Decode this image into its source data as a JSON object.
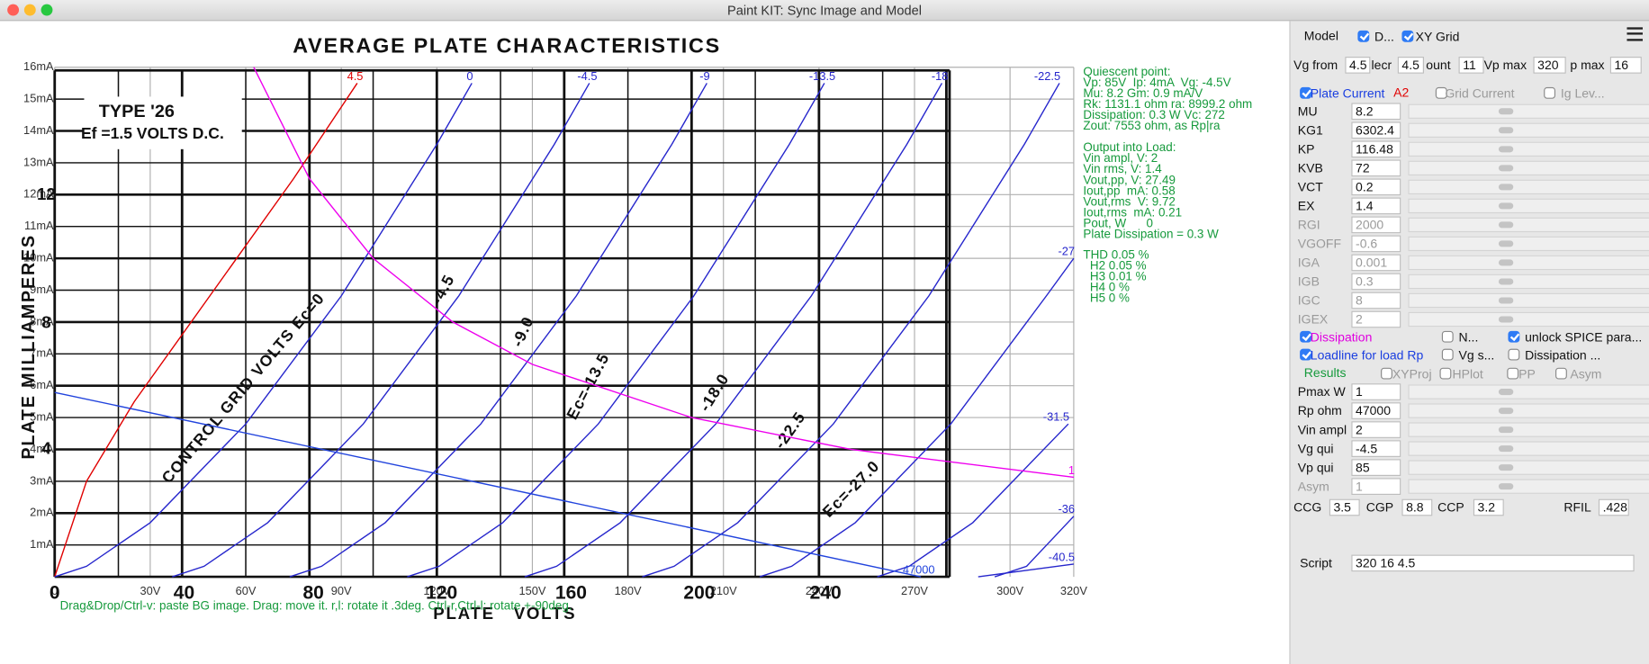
{
  "window": {
    "title": "Paint KIT: Sync Image and Model"
  },
  "scan": {
    "title": "AVERAGE PLATE CHARACTERISTICS",
    "type_label": "TYPE '26",
    "filament": "Ef =1.5 VOLTS D.C.",
    "y_label": "PLATE   MILLIAMPERES",
    "x_label": "PLATE   VOLTS",
    "x_labels": [
      "0",
      "40",
      "80",
      "120",
      "160",
      "200",
      "240"
    ],
    "y_labels": [
      "12",
      "8",
      "4"
    ],
    "curve_labels": [
      "CONTROL GRID VOLTS Ec=0",
      "-4.5",
      "-9.0",
      "Ec=-13.5",
      "-18.0",
      "-22.5",
      "Ec=-27.0"
    ]
  },
  "chart_data": {
    "type": "line",
    "xlim": [
      0,
      320
    ],
    "ylim": [
      0,
      16
    ],
    "grid": true,
    "xticks": [
      0,
      {
        "value": 30,
        "label": "30V"
      },
      {
        "value": 60,
        "label": "60V"
      },
      {
        "value": 90,
        "label": "90V"
      },
      {
        "value": 120,
        "label": "120V"
      },
      {
        "value": 150,
        "label": "150V"
      },
      {
        "value": 180,
        "label": "180V"
      },
      {
        "value": 210,
        "label": "210V"
      },
      {
        "value": 240,
        "label": "240V"
      },
      {
        "value": 270,
        "label": "270V"
      },
      {
        "value": 300,
        "label": "300V"
      },
      {
        "value": 320,
        "label": "320V"
      }
    ],
    "yticks": [
      {
        "value": 1,
        "label": "1mA"
      },
      {
        "value": 2,
        "label": "2mA"
      },
      {
        "value": 3,
        "label": "3mA"
      },
      {
        "value": 4,
        "label": "4mA"
      },
      {
        "value": 5,
        "label": "5mA"
      },
      {
        "value": 6,
        "label": "6mA"
      },
      {
        "value": 7,
        "label": "7mA"
      },
      {
        "value": 8,
        "label": "8mA"
      },
      {
        "value": 9,
        "label": "9mA"
      },
      {
        "value": 10,
        "label": "10mA"
      },
      {
        "value": 11,
        "label": "11mA"
      },
      {
        "value": 12,
        "label": "12mA"
      },
      {
        "value": 13,
        "label": "13mA"
      },
      {
        "value": 14,
        "label": "14mA"
      },
      {
        "value": 15,
        "label": "15mA"
      },
      {
        "value": 16,
        "label": "16mA"
      }
    ],
    "series": [
      {
        "name": "4.5",
        "color": "#e00000",
        "x": [
          0,
          10,
          25,
          50,
          75,
          95
        ],
        "values": [
          0,
          3.0,
          5.5,
          9.0,
          12.5,
          15.5
        ]
      },
      {
        "name": "0",
        "color": "#2626cc",
        "x": [
          0,
          10,
          30,
          60,
          90,
          120,
          131
        ],
        "values": [
          0,
          0.33,
          1.7,
          4.8,
          8.82,
          13.58,
          15.5
        ]
      },
      {
        "name": "-4.5",
        "color": "#2626cc",
        "x": [
          36.9,
          46.9,
          66.9,
          96.9,
          126.9,
          156.9,
          167.9
        ],
        "values": [
          0,
          0.33,
          1.7,
          4.8,
          8.82,
          13.58,
          15.5
        ]
      },
      {
        "name": "-9",
        "color": "#2626cc",
        "x": [
          73.8,
          83.8,
          103.8,
          133.8,
          163.8,
          193.8,
          204.8
        ],
        "values": [
          0,
          0.33,
          1.7,
          4.8,
          8.82,
          13.58,
          15.5
        ]
      },
      {
        "name": "-13.5",
        "color": "#2626cc",
        "x": [
          110.7,
          120.7,
          140.7,
          170.7,
          200.7,
          230.7,
          241.7
        ],
        "values": [
          0,
          0.33,
          1.7,
          4.8,
          8.82,
          13.58,
          15.5
        ]
      },
      {
        "name": "-18",
        "color": "#2626cc",
        "x": [
          147.6,
          157.6,
          177.6,
          207.6,
          237.6,
          267.6,
          278.6
        ],
        "values": [
          0,
          0.33,
          1.7,
          4.8,
          8.82,
          13.58,
          15.5
        ]
      },
      {
        "name": "-22.5",
        "color": "#2626cc",
        "x": [
          184.5,
          194.5,
          214.5,
          244.5,
          274.5,
          304.5,
          315.5
        ],
        "values": [
          0,
          0.33,
          1.7,
          4.8,
          8.82,
          13.58,
          15.5
        ]
      },
      {
        "name": "-27",
        "color": "#2626cc",
        "x": [
          221.4,
          231.4,
          251.4,
          281.4,
          311.4,
          320
        ],
        "values": [
          0,
          0.33,
          1.7,
          4.8,
          8.82,
          10
        ]
      },
      {
        "name": "-31.5",
        "color": "#2626cc",
        "x": [
          258.3,
          268.3,
          288.3,
          318.3
        ],
        "values": [
          0,
          0.33,
          1.7,
          4.8
        ]
      },
      {
        "name": "-36",
        "color": "#2626cc",
        "x": [
          295.2,
          305.2,
          320
        ],
        "values": [
          0,
          0.33,
          1.9
        ]
      },
      {
        "name": "-40.5",
        "color": "#2626cc",
        "x": [
          290,
          320
        ],
        "values": [
          0,
          0.4
        ]
      },
      {
        "name": "47000",
        "color": "#2244dd",
        "x": [
          0,
          272
        ],
        "values": [
          5.79,
          0
        ]
      },
      {
        "name": "1",
        "color": "#ee00ee",
        "x": [
          62.5,
          80,
          100,
          125,
          150,
          200,
          250,
          320
        ],
        "values": [
          16,
          12.5,
          10,
          8,
          6.67,
          5,
          4,
          3.125
        ]
      }
    ]
  },
  "results": {
    "quiescent": [
      "Quiescent point:",
      "Vp: 85V  Ip: 4mA  Vg: -4.5V",
      "Mu: 8.2 Gm: 0.9 mA/V",
      "Rk: 1131.1 ohm ra: 8999.2 ohm",
      "Dissipation: 0.3 W Vc: 272",
      "Zout: 7553 ohm, as Rp|ra"
    ],
    "output": [
      "Output into Load:",
      "Vin ampl, V: 2",
      "Vin rms, V: 1.4",
      "Vout,pp, V: 27.49",
      "Iout,pp  mA: 0.58",
      "Vout,rms  V: 9.72",
      "Iout,rms  mA: 0.21",
      "Pout, W      0",
      "Plate Dissipation = 0.3 W"
    ],
    "harmonics": [
      "THD 0.05 %",
      "  H2 0.05 %",
      "  H3 0.01 %",
      "  H4 0 %",
      "  H5 0 %"
    ]
  },
  "hint": "Drag&Drop/Ctrl-v: paste BG image. Drag: move it. r,l: rotate it .3deg. Ctrl-r,Ctrl-l: rotate +-90deg.",
  "panel": {
    "model_label": "Model",
    "draw_checkbox": "D...",
    "xy_grid": "XY Grid",
    "range_fields": [
      {
        "label": "Vg from",
        "value": "4.5"
      },
      {
        "label": "lecr",
        "value": "4.5"
      },
      {
        "label": "ount",
        "value": "11"
      },
      {
        "label": "Vp max",
        "value": "320"
      },
      {
        "label": "p max",
        "value": "16"
      }
    ],
    "plate_current": "Plate Current",
    "a2": "A2",
    "grid_current": "Grid Current",
    "ig_level": "Ig Lev...",
    "params": [
      {
        "name": "MU",
        "value": "8.2"
      },
      {
        "name": "KG1",
        "value": "6302.4"
      },
      {
        "name": "KP",
        "value": "116.48"
      },
      {
        "name": "KVB",
        "value": "72"
      },
      {
        "name": "VCT",
        "value": "0.2"
      },
      {
        "name": "EX",
        "value": "1.4"
      },
      {
        "name": "RGI",
        "value": "2000"
      },
      {
        "name": "VGOFF",
        "value": "-0.6"
      },
      {
        "name": "IGA",
        "value": "0.001"
      },
      {
        "name": "IGB",
        "value": "0.3"
      },
      {
        "name": "IGC",
        "value": "8"
      },
      {
        "name": "IGEX",
        "value": "2"
      }
    ],
    "options": [
      "Dissipation",
      "N...",
      "unlock SPICE para...",
      "Loadline for load Rp",
      "Vg s...",
      "Dissipation ..."
    ],
    "results_label": "Results",
    "result_options": [
      "XYProj",
      "HPlot",
      "PP",
      "Asym"
    ],
    "load_params": [
      {
        "name": "Pmax W",
        "value": "1"
      },
      {
        "name": "Rp ohm",
        "value": "47000"
      },
      {
        "name": "Vin ampl",
        "value": "2"
      },
      {
        "name": "Vg qui",
        "value": "-4.5"
      },
      {
        "name": "Vp qui",
        "value": "85"
      },
      {
        "name": "Asym",
        "value": "1"
      }
    ],
    "caps": [
      {
        "name": "CCG",
        "value": "3.5"
      },
      {
        "name": "CGP",
        "value": "8.8"
      },
      {
        "name": "CCP",
        "value": "3.2"
      },
      {
        "name": "RFIL",
        "value": ".428"
      }
    ],
    "script_label": "Script",
    "script": "320 16 4.5"
  }
}
